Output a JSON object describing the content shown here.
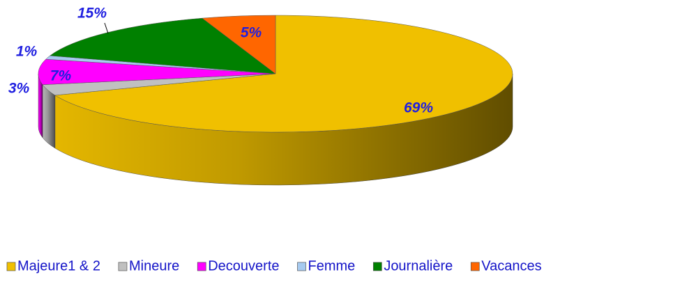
{
  "chart_data": {
    "type": "pie",
    "categories": [
      "Majeure1 & 2",
      "Mineure",
      "Decouverte",
      "Femme",
      "Journalière",
      "Vacances"
    ],
    "values": [
      69,
      3,
      7,
      1,
      15,
      5
    ],
    "value_labels": [
      "69%",
      "3%",
      "7%",
      "1%",
      "15%",
      "5%"
    ],
    "colors": [
      "#f0c000",
      "#c0c0c0",
      "#ff00ff",
      "#a6caf0",
      "#008000",
      "#ff6600"
    ],
    "legend": "bottom"
  }
}
